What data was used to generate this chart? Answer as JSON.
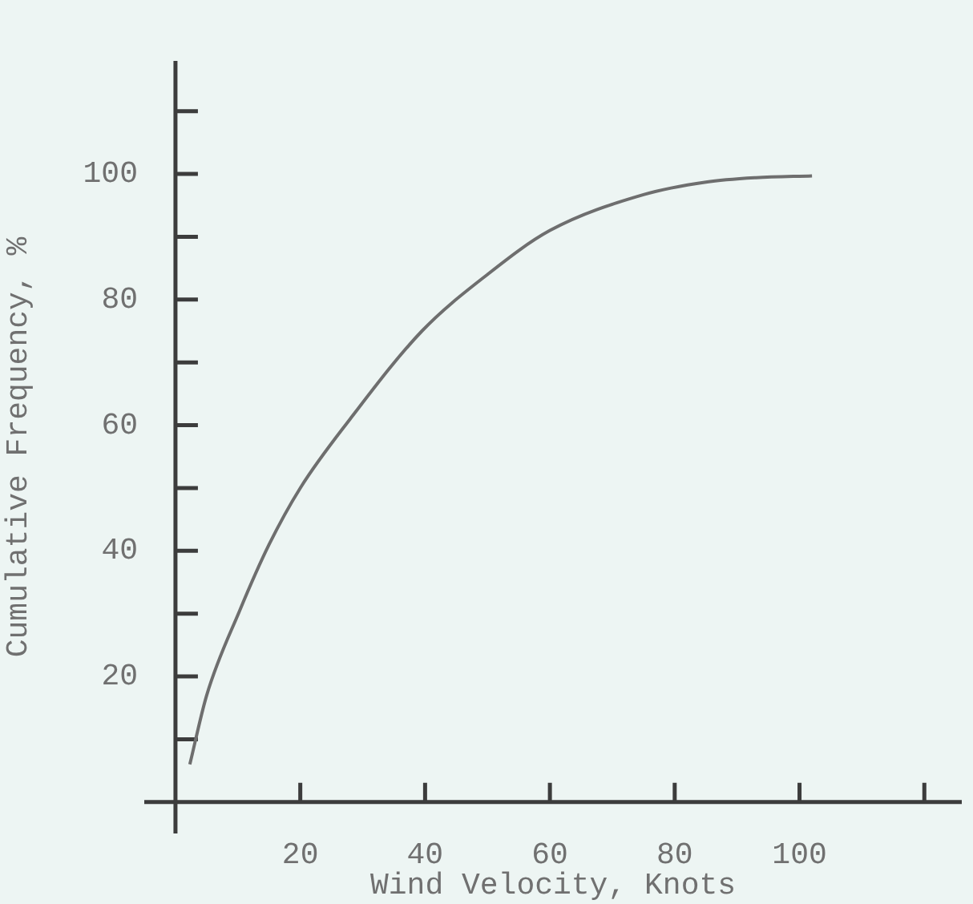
{
  "chart_data": {
    "type": "line",
    "xlabel": "Wind Velocity, Knots",
    "ylabel": "Cumulative Frequency, %",
    "x": [
      2.3,
      5,
      10.3,
      15,
      20,
      28,
      39.5,
      50,
      60,
      75,
      85,
      93,
      102
    ],
    "values": [
      6,
      17,
      30.5,
      41,
      50,
      61,
      75,
      84,
      91,
      96.7,
      98.7,
      99.4,
      99.7
    ],
    "color": "#6e6e6e",
    "marker": "none",
    "line_style": "solid",
    "xlim": [
      -5,
      126
    ],
    "ylim": [
      -5,
      118
    ],
    "xticks": [
      20,
      40,
      60,
      80,
      100,
      {
        "value": 120,
        "label": null
      }
    ],
    "yticks": [
      {
        "value": 10,
        "label": null
      },
      20,
      {
        "value": 30,
        "label": null
      },
      40,
      {
        "value": 50,
        "label": null
      },
      60,
      {
        "value": 70,
        "label": null
      },
      80,
      {
        "value": 90,
        "label": null
      },
      100,
      {
        "value": 110,
        "label": null
      }
    ]
  }
}
